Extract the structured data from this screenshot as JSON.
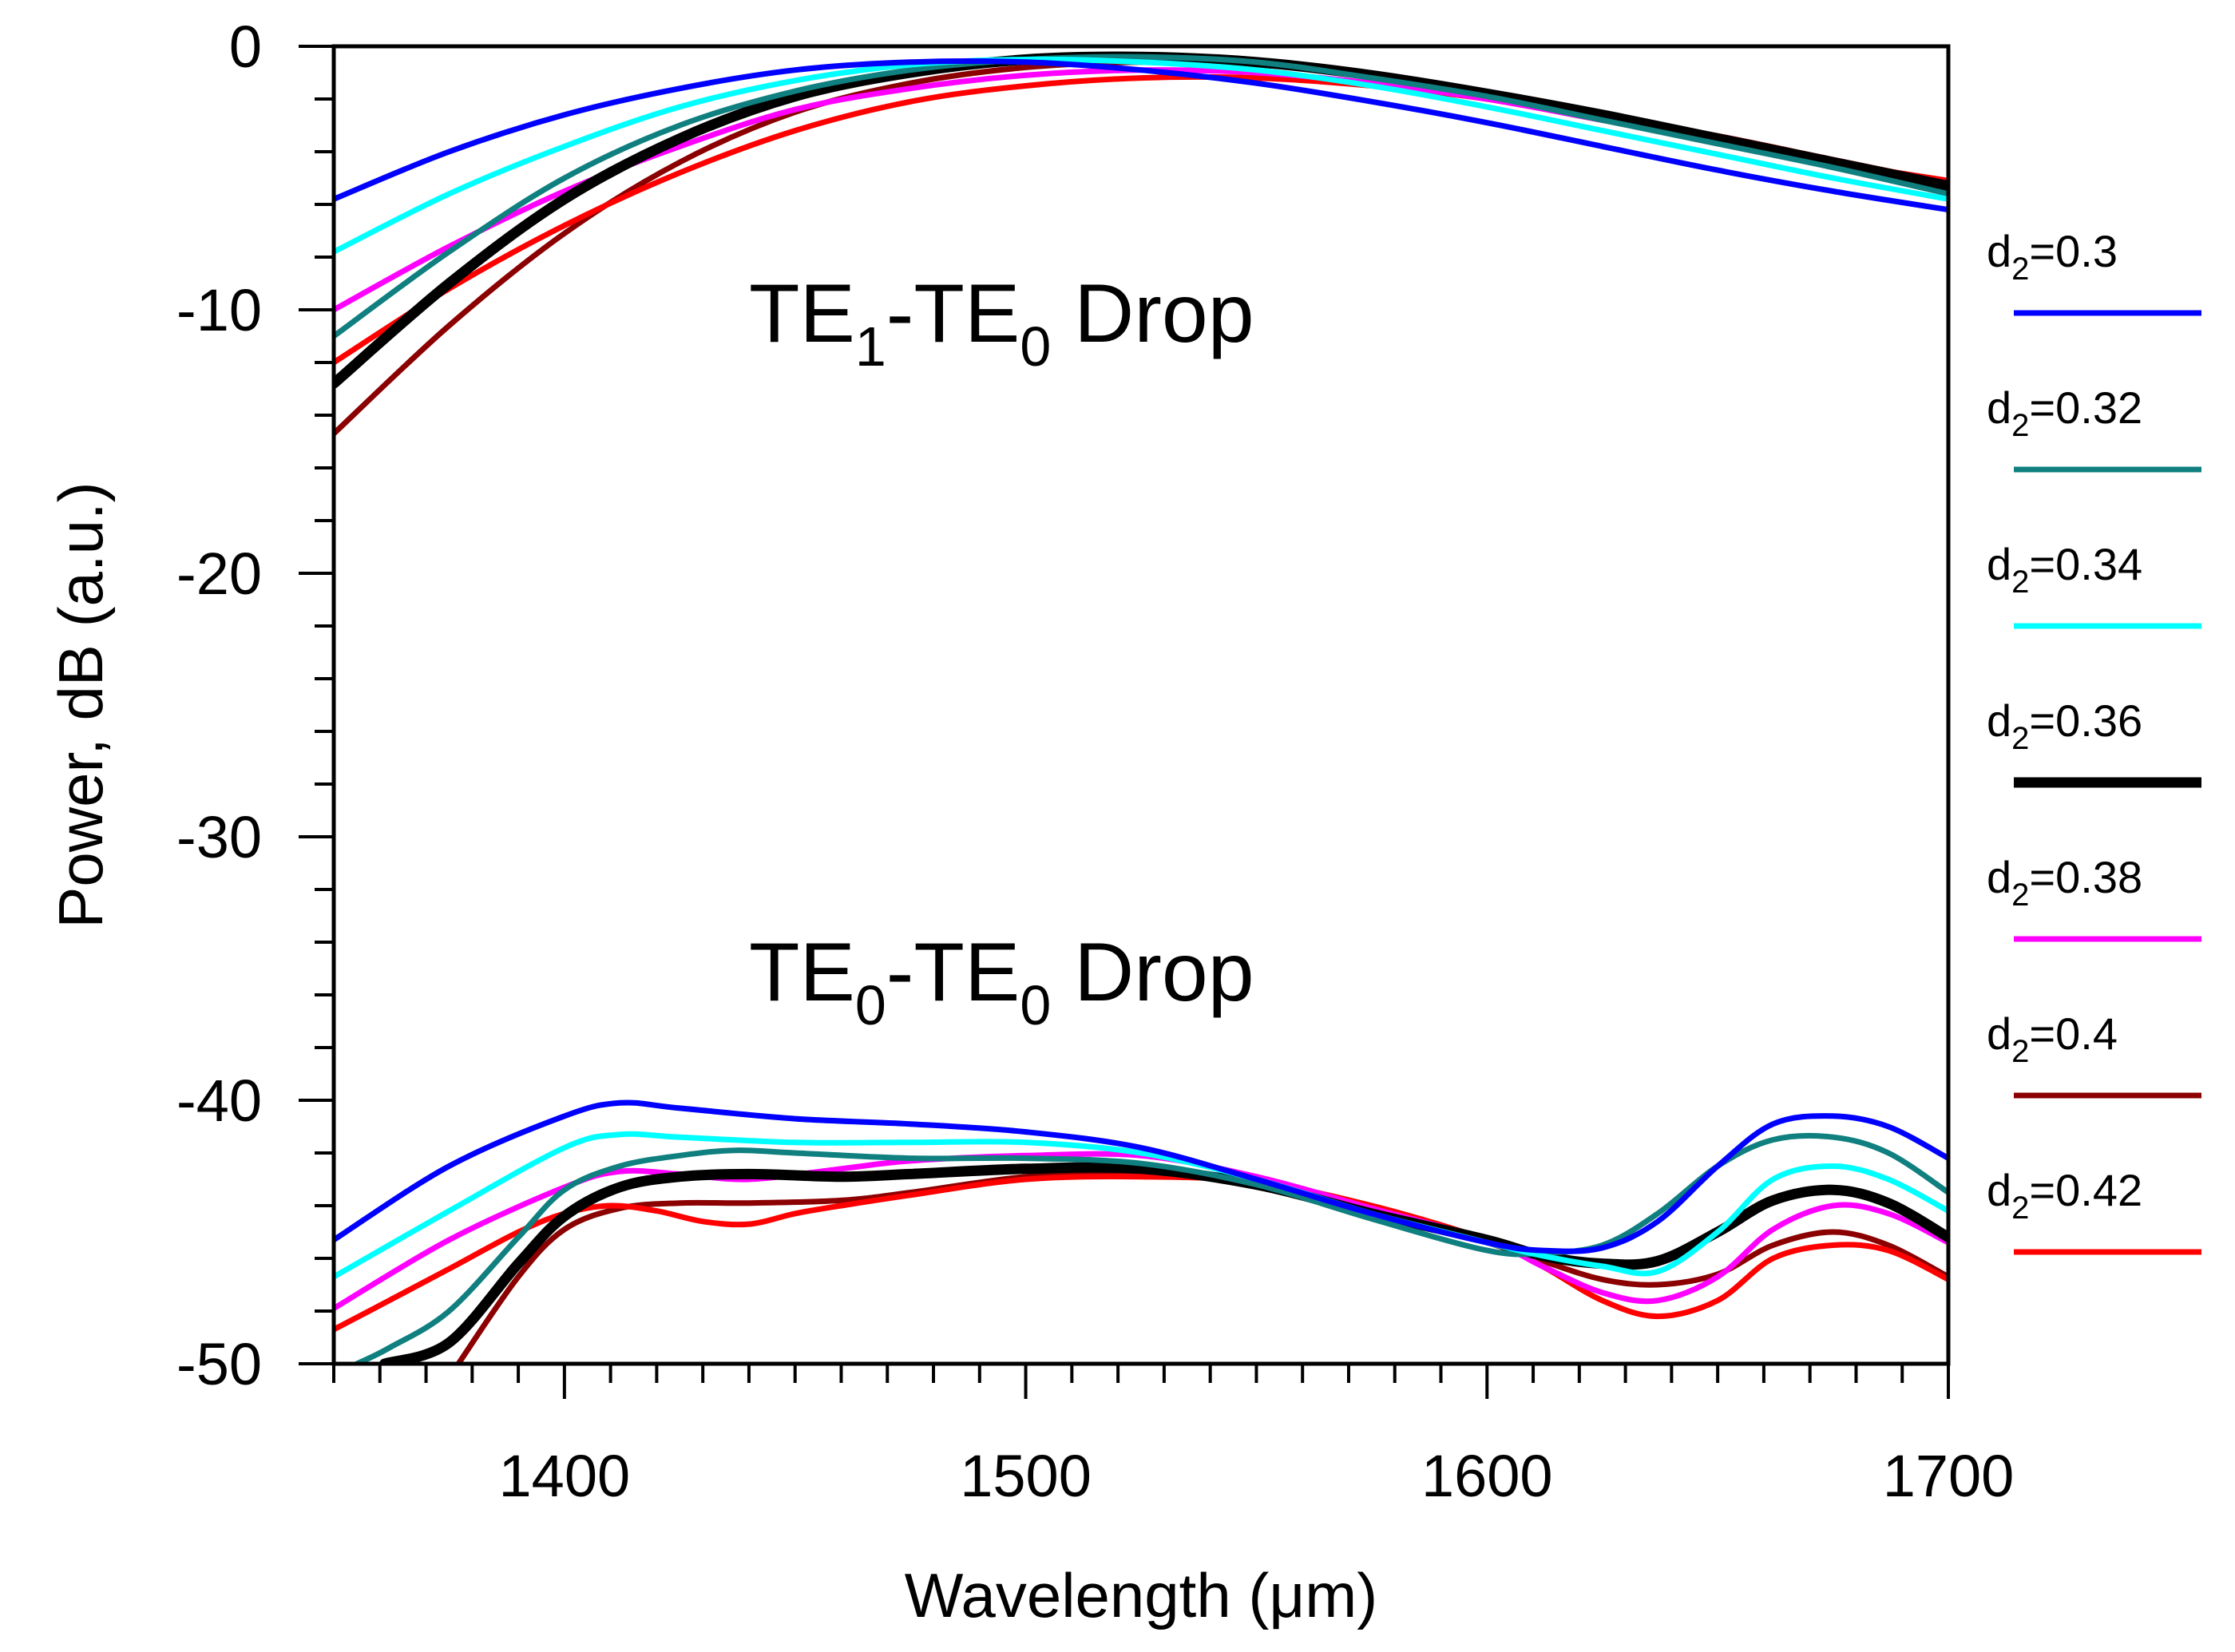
{
  "chart_data": {
    "type": "line",
    "title": "",
    "xlabel": "Wavelength (μm)",
    "ylabel": "Power, dB (a.u.)",
    "xlim": [
      1350,
      1700
    ],
    "ylim": [
      -50,
      0
    ],
    "x_major_ticks": [
      1400,
      1500,
      1600,
      1700
    ],
    "x_tick_labels": [
      "1400",
      "1500",
      "1600",
      "1700"
    ],
    "x_minor_step": 10,
    "y_major_ticks": [
      0,
      -10,
      -20,
      -30,
      -40,
      -50
    ],
    "y_tick_labels": [
      "0",
      "-10",
      "-20",
      "-30",
      "-40",
      "-50"
    ],
    "y_minor_step": 2,
    "grid": false,
    "legend_position": "right, outside plot",
    "annotations": [
      {
        "main": "TE",
        "sub1": "1",
        "mid": "-TE",
        "sub2": "0",
        "tail": " Drop",
        "at": [
          1440,
          -10
        ]
      },
      {
        "main": "TE",
        "sub1": "0",
        "mid": "-TE",
        "sub2": "0",
        "tail": " Drop",
        "at": [
          1440,
          -35
        ]
      }
    ],
    "series": [
      {
        "name": "d2=0.3",
        "label_main": "d",
        "label_sub": "2",
        "label_value": "=0.3",
        "color": "#0000ff",
        "width": 7,
        "te1_drop": {
          "x": [
            1350,
            1375,
            1400,
            1425,
            1450,
            1475,
            1500,
            1525,
            1550,
            1575,
            1600,
            1625,
            1650,
            1675,
            1700
          ],
          "y": [
            -5.8,
            -4.0,
            -2.6,
            -1.6,
            -0.9,
            -0.6,
            -0.6,
            -0.9,
            -1.4,
            -2.1,
            -2.9,
            -3.8,
            -4.7,
            -5.5,
            -6.2
          ]
        },
        "te0_drop": {
          "x": [
            1350,
            1375,
            1400,
            1412,
            1425,
            1450,
            1475,
            1500,
            1525,
            1550,
            1575,
            1600,
            1612,
            1625,
            1637,
            1650,
            1662,
            1675,
            1687,
            1700
          ],
          "y": [
            -45.3,
            -42.5,
            -40.6,
            -40.1,
            -40.3,
            -40.7,
            -40.9,
            -41.2,
            -41.8,
            -43.0,
            -44.3,
            -45.4,
            -45.7,
            -45.6,
            -44.6,
            -42.5,
            -40.9,
            -40.6,
            -41.0,
            -42.2
          ]
        }
      },
      {
        "name": "d2=0.32",
        "label_main": "d",
        "label_sub": "2",
        "label_value": "=0.32",
        "color": "#0f7f7f",
        "width": 7,
        "te1_drop": {
          "x": [
            1350,
            1375,
            1400,
            1425,
            1450,
            1475,
            1500,
            1525,
            1550,
            1575,
            1600,
            1625,
            1650,
            1675,
            1700
          ],
          "y": [
            -11.0,
            -7.8,
            -5.0,
            -3.0,
            -1.7,
            -0.9,
            -0.5,
            -0.4,
            -0.6,
            -1.2,
            -1.9,
            -2.8,
            -3.7,
            -4.6,
            -5.6
          ]
        },
        "te0_drop": {
          "x": [
            1355,
            1362,
            1375,
            1390,
            1400,
            1412,
            1425,
            1437,
            1450,
            1475,
            1500,
            1525,
            1550,
            1575,
            1600,
            1612,
            1625,
            1637,
            1650,
            1662,
            1675,
            1687,
            1700
          ],
          "y": [
            -50.0,
            -49.4,
            -48.0,
            -45.2,
            -43.4,
            -42.5,
            -42.1,
            -41.9,
            -42.0,
            -42.2,
            -42.2,
            -42.4,
            -43.2,
            -44.5,
            -45.7,
            -45.8,
            -45.5,
            -44.3,
            -42.5,
            -41.5,
            -41.4,
            -42.0,
            -43.5
          ]
        }
      },
      {
        "name": "d2=0.34",
        "label_main": "d",
        "label_sub": "2",
        "label_value": "=0.34",
        "color": "#00ffff",
        "width": 7,
        "te1_drop": {
          "x": [
            1350,
            1375,
            1400,
            1425,
            1450,
            1475,
            1500,
            1525,
            1550,
            1575,
            1600,
            1625,
            1650,
            1675,
            1700
          ],
          "y": [
            -7.8,
            -5.6,
            -3.8,
            -2.3,
            -1.3,
            -0.7,
            -0.5,
            -0.6,
            -0.9,
            -1.5,
            -2.3,
            -3.2,
            -4.1,
            -5.0,
            -5.8
          ]
        },
        "te0_drop": {
          "x": [
            1350,
            1375,
            1400,
            1412,
            1425,
            1450,
            1475,
            1500,
            1525,
            1550,
            1575,
            1600,
            1612,
            1625,
            1637,
            1650,
            1662,
            1675,
            1687,
            1700
          ],
          "y": [
            -46.7,
            -44.2,
            -41.8,
            -41.3,
            -41.4,
            -41.6,
            -41.6,
            -41.6,
            -42.0,
            -43.0,
            -44.3,
            -45.4,
            -45.9,
            -46.3,
            -46.5,
            -45.0,
            -43.0,
            -42.5,
            -43.0,
            -44.2
          ]
        }
      },
      {
        "name": "d2=0.36",
        "label_main": "d",
        "label_sub": "2",
        "label_value": "=0.36",
        "color": "#000000",
        "width": 13,
        "te1_drop": {
          "x": [
            1350,
            1375,
            1400,
            1425,
            1450,
            1475,
            1500,
            1525,
            1550,
            1575,
            1600,
            1625,
            1650,
            1675,
            1700
          ],
          "y": [
            -12.8,
            -9.0,
            -5.8,
            -3.5,
            -1.9,
            -1.0,
            -0.5,
            -0.4,
            -0.6,
            -1.1,
            -1.8,
            -2.6,
            -3.5,
            -4.4,
            -5.3
          ]
        },
        "te0_drop": {
          "x": [
            1361,
            1375,
            1390,
            1400,
            1412,
            1425,
            1440,
            1460,
            1475,
            1500,
            1525,
            1550,
            1575,
            1600,
            1612,
            1625,
            1637,
            1650,
            1662,
            1675,
            1687,
            1700
          ],
          "y": [
            -50.0,
            -49.2,
            -46.2,
            -44.4,
            -43.3,
            -42.9,
            -42.8,
            -42.9,
            -42.8,
            -42.6,
            -42.6,
            -43.2,
            -44.3,
            -45.3,
            -45.9,
            -46.2,
            -46.1,
            -45.0,
            -43.8,
            -43.4,
            -43.9,
            -45.2
          ]
        }
      },
      {
        "name": "d2=0.38",
        "label_main": "d",
        "label_sub": "2",
        "label_value": "=0.38",
        "color": "#ff00ff",
        "width": 7,
        "te1_drop": {
          "x": [
            1350,
            1375,
            1400,
            1425,
            1450,
            1475,
            1500,
            1525,
            1550,
            1575,
            1600,
            1625,
            1650,
            1675,
            1700
          ],
          "y": [
            -10.0,
            -7.6,
            -5.5,
            -3.8,
            -2.4,
            -1.6,
            -1.1,
            -0.9,
            -1.0,
            -1.4,
            -2.0,
            -2.8,
            -3.6,
            -4.4,
            -5.2
          ]
        },
        "te0_drop": {
          "x": [
            1350,
            1375,
            1400,
            1412,
            1425,
            1440,
            1460,
            1475,
            1500,
            1525,
            1550,
            1575,
            1600,
            1612,
            1625,
            1637,
            1650,
            1662,
            1675,
            1687,
            1700
          ],
          "y": [
            -47.9,
            -45.3,
            -43.3,
            -42.7,
            -42.8,
            -43.0,
            -42.6,
            -42.3,
            -42.1,
            -42.1,
            -42.9,
            -44.1,
            -45.3,
            -46.3,
            -47.3,
            -47.6,
            -46.7,
            -44.9,
            -44.0,
            -44.3,
            -45.4
          ]
        }
      },
      {
        "name": "d2=0.4",
        "label_main": "d",
        "label_sub": "2",
        "label_value": "=0.4",
        "color": "#8b0000",
        "width": 7,
        "te1_drop": {
          "x": [
            1350,
            1375,
            1400,
            1425,
            1450,
            1475,
            1500,
            1525,
            1550,
            1575,
            1600,
            1625,
            1650,
            1675,
            1700
          ],
          "y": [
            -14.7,
            -10.6,
            -7.1,
            -4.4,
            -2.5,
            -1.4,
            -0.8,
            -0.6,
            -0.7,
            -1.1,
            -1.8,
            -2.6,
            -3.4,
            -4.3,
            -5.2
          ]
        },
        "te0_drop": {
          "x": [
            1377,
            1390,
            1400,
            1412,
            1425,
            1440,
            1460,
            1475,
            1500,
            1525,
            1550,
            1575,
            1600,
            1612,
            1625,
            1637,
            1650,
            1662,
            1675,
            1687,
            1700
          ],
          "y": [
            -50.0,
            -46.7,
            -44.9,
            -44.1,
            -43.9,
            -43.9,
            -43.8,
            -43.5,
            -42.9,
            -42.7,
            -43.2,
            -44.2,
            -45.4,
            -46.1,
            -46.8,
            -47.0,
            -46.6,
            -45.5,
            -45.0,
            -45.5,
            -46.7
          ]
        }
      },
      {
        "name": "d2=0.42",
        "label_main": "d",
        "label_sub": "2",
        "label_value": "=0.42",
        "color": "#ff0000",
        "width": 7,
        "te1_drop": {
          "x": [
            1350,
            1375,
            1400,
            1425,
            1450,
            1475,
            1500,
            1525,
            1550,
            1575,
            1600,
            1625,
            1650,
            1675,
            1700
          ],
          "y": [
            -12.0,
            -9.2,
            -6.8,
            -4.8,
            -3.2,
            -2.1,
            -1.5,
            -1.2,
            -1.2,
            -1.5,
            -2.0,
            -2.8,
            -3.6,
            -4.4,
            -5.1
          ]
        },
        "te0_drop": {
          "x": [
            1350,
            1362,
            1375,
            1390,
            1400,
            1410,
            1420,
            1430,
            1440,
            1450,
            1460,
            1475,
            1500,
            1525,
            1550,
            1575,
            1600,
            1612,
            1625,
            1637,
            1650,
            1662,
            1675,
            1687,
            1700
          ],
          "y": [
            -48.7,
            -47.6,
            -46.4,
            -45.0,
            -44.3,
            -44.0,
            -44.2,
            -44.6,
            -44.7,
            -44.3,
            -44.0,
            -43.6,
            -43.0,
            -42.9,
            -43.1,
            -44.0,
            -45.3,
            -46.3,
            -47.6,
            -48.2,
            -47.6,
            -46.0,
            -45.5,
            -45.7,
            -46.8
          ]
        }
      }
    ]
  }
}
